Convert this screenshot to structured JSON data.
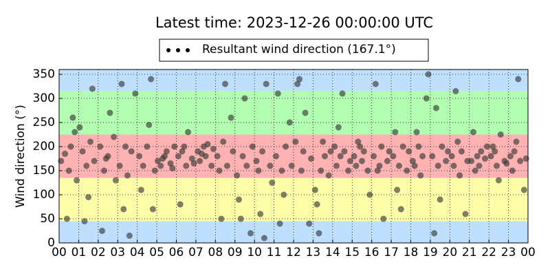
{
  "chart_data": {
    "type": "scatter",
    "title": "Latest time: 2023-12-26 00:00:00 UTC",
    "ylabel": "Wind direction (°)",
    "legend": "upper center",
    "grid": true,
    "xlim": [
      0,
      24
    ],
    "ylim": [
      0,
      360
    ],
    "xticks": [
      {
        "value": 0,
        "label": "00"
      },
      {
        "value": 1,
        "label": "01"
      },
      {
        "value": 2,
        "label": "02"
      },
      {
        "value": 3,
        "label": "03"
      },
      {
        "value": 4,
        "label": "04"
      },
      {
        "value": 5,
        "label": "05"
      },
      {
        "value": 6,
        "label": "06"
      },
      {
        "value": 7,
        "label": "07"
      },
      {
        "value": 8,
        "label": "08"
      },
      {
        "value": 9,
        "label": "09"
      },
      {
        "value": 10,
        "label": "10"
      },
      {
        "value": 11,
        "label": "11"
      },
      {
        "value": 12,
        "label": "12"
      },
      {
        "value": 13,
        "label": "13"
      },
      {
        "value": 14,
        "label": "14"
      },
      {
        "value": 15,
        "label": "15"
      },
      {
        "value": 16,
        "label": "16"
      },
      {
        "value": 17,
        "label": "17"
      },
      {
        "value": 18,
        "label": "18"
      },
      {
        "value": 19,
        "label": "19"
      },
      {
        "value": 20,
        "label": "20"
      },
      {
        "value": 21,
        "label": "21"
      },
      {
        "value": 22,
        "label": "22"
      },
      {
        "value": 23,
        "label": "23"
      },
      {
        "value": 24,
        "label": "00"
      }
    ],
    "yticks": [
      0,
      50,
      100,
      150,
      200,
      250,
      300,
      350
    ],
    "bands": [
      {
        "from": 0,
        "to": 45,
        "color": "#bfdfff"
      },
      {
        "from": 45,
        "to": 135,
        "color": "#ffffaa"
      },
      {
        "from": 135,
        "to": 225,
        "color": "#ffb2b2"
      },
      {
        "from": 225,
        "to": 315,
        "color": "#b2ffb2"
      },
      {
        "from": 315,
        "to": 360,
        "color": "#bfdfff"
      }
    ],
    "series": [
      {
        "name": "Resultant wind direction (167.1°)",
        "color": "#3a3a3a",
        "x": [
          0.1,
          0.3,
          0.5,
          0.6,
          0.8,
          0.9,
          0.4,
          0.7,
          1.05,
          1.2,
          1.4,
          1.5,
          1.6,
          1.8,
          1.3,
          1.7,
          2.1,
          2.3,
          2.5,
          2.6,
          2.8,
          2.9,
          2.2,
          2.4,
          3.1,
          3.2,
          3.4,
          3.5,
          3.7,
          3.9,
          3.3,
          3.6,
          4.1,
          4.3,
          4.5,
          4.6,
          4.7,
          4.9,
          4.2,
          4.8,
          5.05,
          5.2,
          5.4,
          5.5,
          5.7,
          5.9,
          5.3,
          5.8,
          6.1,
          6.2,
          6.4,
          6.5,
          6.6,
          6.8,
          6.3,
          6.9,
          7.1,
          7.2,
          7.4,
          7.5,
          7.6,
          7.8,
          7.3,
          7.9,
          8.1,
          8.2,
          8.4,
          8.5,
          8.6,
          8.8,
          8.3,
          8.9,
          9.1,
          9.2,
          9.4,
          9.5,
          9.6,
          9.8,
          9.3,
          9.9,
          10.1,
          10.2,
          10.4,
          10.5,
          10.6,
          10.8,
          10.3,
          10.9,
          11.1,
          11.2,
          11.4,
          11.5,
          11.6,
          11.8,
          11.3,
          11.9,
          12.1,
          12.2,
          12.4,
          12.5,
          12.6,
          12.8,
          12.3,
          12.9,
          13.1,
          13.2,
          13.4,
          13.5,
          13.6,
          13.8,
          13.3,
          13.9,
          14.1,
          14.2,
          14.4,
          14.5,
          14.6,
          14.8,
          14.3,
          14.9,
          15.1,
          15.2,
          15.4,
          15.5,
          15.6,
          15.8,
          15.3,
          15.9,
          16.1,
          16.2,
          16.4,
          16.5,
          16.6,
          16.8,
          16.3,
          16.9,
          17.1,
          17.2,
          17.4,
          17.5,
          17.6,
          17.8,
          17.3,
          17.9,
          18.1,
          18.2,
          18.4,
          18.5,
          18.6,
          18.8,
          18.3,
          18.9,
          19.1,
          19.2,
          19.4,
          19.5,
          19.6,
          19.8,
          19.3,
          19.9,
          20.1,
          20.2,
          20.4,
          20.5,
          20.6,
          20.8,
          20.3,
          20.9,
          21.1,
          21.2,
          21.4,
          21.5,
          21.6,
          21.8,
          21.3,
          21.9,
          22.1,
          22.2,
          22.4,
          22.5,
          22.6,
          22.8,
          22.3,
          22.9,
          23.1,
          23.2,
          23.4,
          23.5,
          23.6,
          23.8,
          23.3,
          23.9
        ],
        "values": [
          170,
          185,
          150,
          200,
          230,
          130,
          50,
          260,
          240,
          190,
          160,
          95,
          210,
          170,
          45,
          320,
          200,
          150,
          180,
          270,
          220,
          130,
          25,
          175,
          160,
          330,
          200,
          140,
          190,
          310,
          70,
          15,
          180,
          160,
          200,
          245,
          340,
          150,
          110,
          70,
          170,
          160,
          180,
          190,
          165,
          200,
          175,
          155,
          180,
          80,
          200,
          160,
          230,
          175,
          190,
          165,
          190,
          170,
          200,
          180,
          205,
          160,
          185,
          195,
          180,
          150,
          210,
          330,
          160,
          260,
          50,
          190,
          140,
          90,
          180,
          300,
          160,
          20,
          50,
          200,
          170,
          150,
          190,
          10,
          330,
          160,
          60,
          125,
          180,
          310,
          150,
          100,
          200,
          250,
          40,
          160,
          210,
          330,
          150,
          190,
          270,
          40,
          340,
          175,
          110,
          80,
          150,
          210,
          180,
          140,
          20,
          190,
          200,
          160,
          180,
          310,
          190,
          150,
          240,
          170,
          180,
          160,
          200,
          170,
          190,
          150,
          210,
          100,
          180,
          330,
          160,
          200,
          50,
          170,
          150,
          190,
          180,
          230,
          160,
          70,
          200,
          150,
          110,
          190,
          170,
          160,
          200,
          140,
          180,
          300,
          230,
          350,
          180,
          20,
          160,
          90,
          200,
          170,
          280,
          190,
          180,
          160,
          210,
          140,
          190,
          60,
          315,
          170,
          170,
          230,
          180,
          160,
          190,
          175,
          150,
          200,
          180,
          200,
          160,
          130,
          225,
          170,
          190,
          165,
          180,
          150,
          210,
          340,
          170,
          110,
          190,
          175
        ]
      }
    ]
  }
}
